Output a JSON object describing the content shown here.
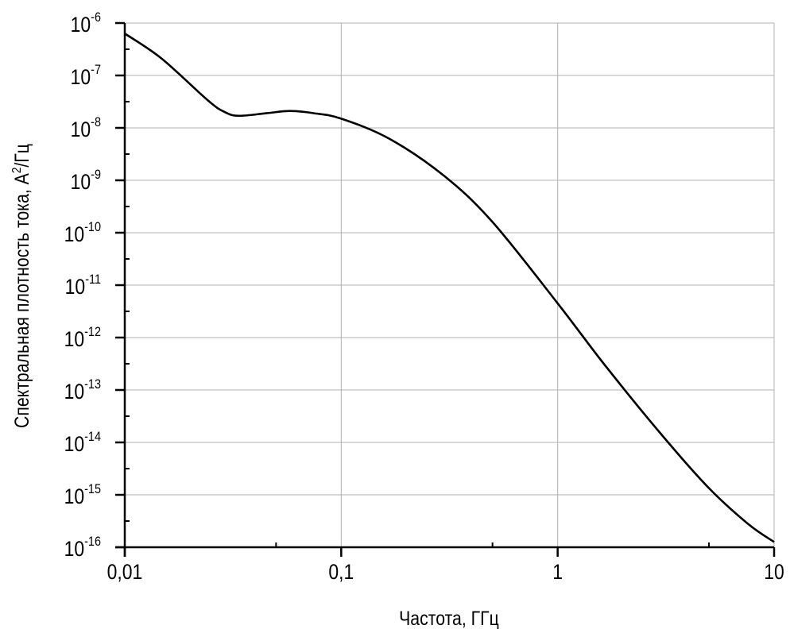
{
  "chart_data": {
    "type": "line",
    "title": "",
    "xlabel": "Частота, ГГц",
    "ylabel": "Спектральная плотность тока, А²/Гц",
    "ylabel_main": "Спектральная плотность тока, А",
    "ylabel_sup": "2",
    "ylabel_tail": "/Гц",
    "x_scale": "log",
    "y_scale": "log",
    "xlim": [
      0.01,
      10
    ],
    "ylim": [
      1e-16,
      1e-06
    ],
    "grid": true,
    "x_ticks": [
      {
        "value": 0.01,
        "label": "0,01"
      },
      {
        "value": 0.1,
        "label": "0,1"
      },
      {
        "value": 1,
        "label": "1"
      },
      {
        "value": 10,
        "label": "10"
      }
    ],
    "y_ticks": [
      {
        "value": -6,
        "base": "10",
        "exp": "-6"
      },
      {
        "value": -7,
        "base": "10",
        "exp": "-7"
      },
      {
        "value": -8,
        "base": "10",
        "exp": "-8"
      },
      {
        "value": -9,
        "base": "10",
        "exp": "-9"
      },
      {
        "value": -10,
        "base": "10",
        "exp": "-10"
      },
      {
        "value": -11,
        "base": "10",
        "exp": "-11"
      },
      {
        "value": -12,
        "base": "10",
        "exp": "-12"
      },
      {
        "value": -13,
        "base": "10",
        "exp": "-13"
      },
      {
        "value": -14,
        "base": "10",
        "exp": "-14"
      },
      {
        "value": -15,
        "base": "10",
        "exp": "-15"
      },
      {
        "value": -16,
        "base": "10",
        "exp": "-16"
      }
    ],
    "series": [
      {
        "color": "#000000",
        "x": [
          0.01,
          0.0148,
          0.0243,
          0.029,
          0.0336,
          0.045,
          0.058,
          0.075,
          0.1,
          0.167,
          0.3,
          0.5,
          1,
          1.65,
          2.98,
          4.95,
          7.57,
          10
        ],
        "y": [
          6.3e-07,
          2.1e-07,
          3.3e-08,
          2e-08,
          1.7e-08,
          1.9e-08,
          2.1e-08,
          1.9e-08,
          1.5e-08,
          6.2e-09,
          1.2e-09,
          1.6e-10,
          4.5e-12,
          3e-13,
          1.5e-14,
          1.4e-15,
          2.8e-16,
          1.26e-16
        ]
      }
    ]
  }
}
